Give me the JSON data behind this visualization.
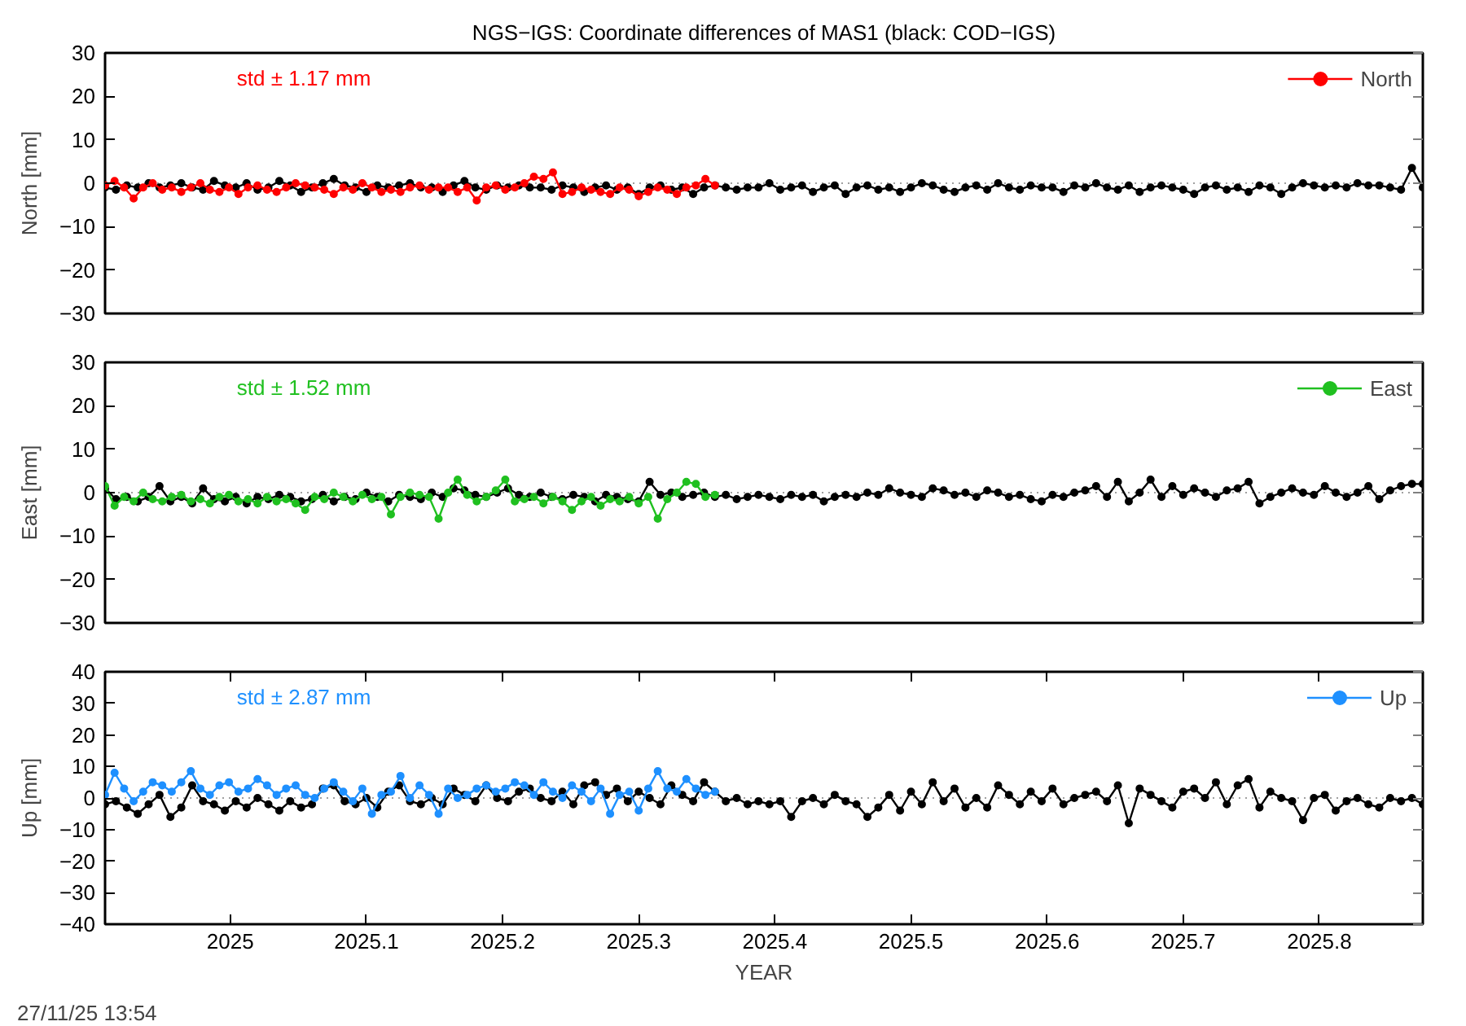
{
  "chart_data": [
    {
      "type": "line",
      "title": "NGS−IGS: Coordinate differences of MAS1 (black: COD−IGS)",
      "ylabel": "North [mm]",
      "xlim": [
        2024.908,
        2025.876
      ],
      "ylim": [
        -30,
        30
      ],
      "yticks": [
        -30,
        -20,
        -10,
        0,
        10,
        20,
        30
      ],
      "tick_labels": "y",
      "legend": "top right",
      "marker": "circle",
      "ref_lines": [
        {
          "axis": "y",
          "value": 0,
          "color": "#a0a0a0",
          "line_style": "dotted"
        }
      ],
      "annotations": [
        "std ± 1.17 mm"
      ],
      "series": [
        {
          "color": "#000000",
          "x": [
            2024.908,
            2024.916,
            2024.924,
            2024.932,
            2024.94,
            2024.948,
            2024.956,
            2024.964,
            2024.972,
            2024.98,
            2024.988,
            2024.996,
            2025.004,
            2025.012,
            2025.02,
            2025.028,
            2025.036,
            2025.044,
            2025.052,
            2025.06,
            2025.068,
            2025.076,
            2025.084,
            2025.092,
            2025.1,
            2025.108,
            2025.116,
            2025.124,
            2025.132,
            2025.14,
            2025.148,
            2025.156,
            2025.164,
            2025.172,
            2025.18,
            2025.188,
            2025.196,
            2025.204,
            2025.212,
            2025.22,
            2025.228,
            2025.236,
            2025.244,
            2025.252,
            2025.26,
            2025.268,
            2025.276,
            2025.284,
            2025.292,
            2025.3,
            2025.308,
            2025.316,
            2025.324,
            2025.332,
            2025.34,
            2025.348,
            2025.356,
            2025.364,
            2025.372,
            2025.38,
            2025.388,
            2025.396,
            2025.404,
            2025.412,
            2025.42,
            2025.428,
            2025.436,
            2025.444,
            2025.452,
            2025.46,
            2025.468,
            2025.476,
            2025.484,
            2025.492,
            2025.5,
            2025.508,
            2025.516,
            2025.524,
            2025.532,
            2025.54,
            2025.548,
            2025.556,
            2025.564,
            2025.572,
            2025.58,
            2025.588,
            2025.596,
            2025.604,
            2025.612,
            2025.62,
            2025.628,
            2025.636,
            2025.644,
            2025.652,
            2025.66,
            2025.668,
            2025.676,
            2025.684,
            2025.692,
            2025.7,
            2025.708,
            2025.716,
            2025.724,
            2025.732,
            2025.74,
            2025.748,
            2025.756,
            2025.764,
            2025.772,
            2025.78,
            2025.788,
            2025.796,
            2025.804,
            2025.812,
            2025.82,
            2025.828,
            2025.836,
            2025.844,
            2025.852,
            2025.86,
            2025.868,
            2025.876
          ],
          "values": [
            -1,
            -1.5,
            -0.5,
            -1,
            0,
            -1,
            -0.5,
            0,
            -1,
            -1.5,
            0.5,
            -0.5,
            -1,
            0,
            -1.5,
            -1,
            0.5,
            -0.5,
            -2,
            -1,
            0,
            1,
            -0.5,
            -1,
            -2,
            -0.5,
            -1,
            -0.5,
            0,
            -1,
            -1,
            -2,
            -0.5,
            0.5,
            -1,
            -1.5,
            -0.5,
            -1,
            -0.5,
            -1,
            -1,
            -1.5,
            -0.5,
            -1,
            -2,
            -1,
            -0.5,
            -1.5,
            -1,
            -2.5,
            -1,
            -0.5,
            -1.5,
            -1,
            -2.5,
            -1,
            -0.5,
            -1,
            -1.5,
            -1,
            -1,
            0,
            -1.5,
            -1,
            -0.5,
            -2,
            -1,
            -0.5,
            -2.5,
            -1,
            -0.5,
            -1.5,
            -1,
            -2,
            -1,
            0,
            -0.5,
            -1.5,
            -2,
            -1,
            -0.5,
            -1.5,
            0,
            -1,
            -1.5,
            -0.5,
            -1,
            -1,
            -2,
            -0.5,
            -1,
            0,
            -1,
            -1.5,
            -0.5,
            -2,
            -1,
            -0.5,
            -1,
            -1.5,
            -2.5,
            -1,
            -0.5,
            -1.5,
            -1,
            -2,
            -0.5,
            -1,
            -2.5,
            -1,
            0,
            -0.5,
            -1,
            -0.5,
            -1,
            0,
            -0.5,
            -0.5,
            -1,
            -1.5,
            3.5,
            -1
          ]
        },
        {
          "name": "North",
          "color": "#ff0000",
          "x": [
            2024.908,
            2024.915,
            2024.922,
            2024.929,
            2024.936,
            2024.943,
            2024.95,
            2024.957,
            2024.964,
            2024.971,
            2024.978,
            2024.985,
            2024.992,
            2024.999,
            2025.006,
            2025.013,
            2025.02,
            2025.027,
            2025.034,
            2025.041,
            2025.048,
            2025.055,
            2025.062,
            2025.069,
            2025.076,
            2025.083,
            2025.09,
            2025.097,
            2025.104,
            2025.111,
            2025.118,
            2025.125,
            2025.132,
            2025.139,
            2025.146,
            2025.153,
            2025.16,
            2025.167,
            2025.174,
            2025.181,
            2025.188,
            2025.195,
            2025.202,
            2025.209,
            2025.216,
            2025.223,
            2025.23,
            2025.237,
            2025.244,
            2025.251,
            2025.258,
            2025.265,
            2025.272,
            2025.279,
            2025.286,
            2025.293,
            2025.3,
            2025.307,
            2025.314,
            2025.321,
            2025.328,
            2025.335,
            2025.342,
            2025.349,
            2025.356
          ],
          "values": [
            -0.5,
            0.5,
            -1,
            -3.5,
            -1,
            0,
            -1.5,
            -1,
            -2,
            -1,
            0,
            -1.5,
            -2,
            -1,
            -2.5,
            -1,
            -0.5,
            -1.5,
            -2,
            -1,
            0,
            -0.5,
            -1,
            -1.5,
            -2.5,
            -1,
            -1.5,
            0,
            -1,
            -2,
            -1.5,
            -2,
            -1,
            -0.5,
            -1.5,
            -1,
            -1,
            -2,
            -1,
            -4,
            -1,
            -0.5,
            -1.5,
            -1,
            0,
            1.5,
            1,
            2.5,
            -2.5,
            -2,
            -1,
            -1.5,
            -2,
            -2.5,
            -1,
            -1.5,
            -3,
            -2,
            -1,
            -1.5,
            -2.5,
            -1,
            -0.5,
            1,
            -0.5
          ]
        }
      ]
    },
    {
      "type": "line",
      "ylabel": "East [mm]",
      "xlim": [
        2024.908,
        2025.876
      ],
      "ylim": [
        -30,
        30
      ],
      "yticks": [
        -30,
        -20,
        -10,
        0,
        10,
        20,
        30
      ],
      "tick_labels": "y",
      "legend": "top right",
      "marker": "circle",
      "ref_lines": [
        {
          "axis": "y",
          "value": 0,
          "color": "#a0a0a0",
          "line_style": "dotted"
        }
      ],
      "annotations": [
        "std ± 1.52 mm"
      ],
      "series": [
        {
          "color": "#000000",
          "x": [
            2024.908,
            2024.916,
            2024.924,
            2024.932,
            2024.94,
            2024.948,
            2024.956,
            2024.964,
            2024.972,
            2024.98,
            2024.988,
            2024.996,
            2025.004,
            2025.012,
            2025.02,
            2025.028,
            2025.036,
            2025.044,
            2025.052,
            2025.06,
            2025.068,
            2025.076,
            2025.084,
            2025.092,
            2025.1,
            2025.108,
            2025.116,
            2025.124,
            2025.132,
            2025.14,
            2025.148,
            2025.156,
            2025.164,
            2025.172,
            2025.18,
            2025.188,
            2025.196,
            2025.204,
            2025.212,
            2025.22,
            2025.228,
            2025.236,
            2025.244,
            2025.252,
            2025.26,
            2025.268,
            2025.276,
            2025.284,
            2025.292,
            2025.3,
            2025.308,
            2025.316,
            2025.324,
            2025.332,
            2025.34,
            2025.348,
            2025.356,
            2025.364,
            2025.372,
            2025.38,
            2025.388,
            2025.396,
            2025.404,
            2025.412,
            2025.42,
            2025.428,
            2025.436,
            2025.444,
            2025.452,
            2025.46,
            2025.468,
            2025.476,
            2025.484,
            2025.492,
            2025.5,
            2025.508,
            2025.516,
            2025.524,
            2025.532,
            2025.54,
            2025.548,
            2025.556,
            2025.564,
            2025.572,
            2025.58,
            2025.588,
            2025.596,
            2025.604,
            2025.612,
            2025.62,
            2025.628,
            2025.636,
            2025.644,
            2025.652,
            2025.66,
            2025.668,
            2025.676,
            2025.684,
            2025.692,
            2025.7,
            2025.708,
            2025.716,
            2025.724,
            2025.732,
            2025.74,
            2025.748,
            2025.756,
            2025.764,
            2025.772,
            2025.78,
            2025.788,
            2025.796,
            2025.804,
            2025.812,
            2025.82,
            2025.828,
            2025.836,
            2025.844,
            2025.852,
            2025.86,
            2025.868,
            2025.876
          ],
          "values": [
            1,
            -1.5,
            -1,
            -2,
            -1,
            1.5,
            -2,
            -1,
            -2.5,
            1,
            -1.5,
            -2,
            -1,
            -2.5,
            -1,
            -1.5,
            -0.5,
            -1,
            -2,
            -1.5,
            -0.5,
            -2,
            -1,
            -1.5,
            0,
            -1,
            -2,
            -0.5,
            -1,
            -1.5,
            0,
            -1,
            1,
            0.5,
            -0.5,
            -1,
            0,
            1,
            -0.5,
            -1,
            0,
            -1,
            -1.5,
            -0.5,
            -1,
            -2,
            -0.5,
            -1,
            -1.5,
            -2,
            2.5,
            -0.5,
            0,
            -1,
            -0.5,
            0,
            -1,
            -0.5,
            -1.5,
            -1,
            -0.5,
            -1,
            -1.5,
            -0.5,
            -1,
            -0.5,
            -2,
            -1,
            -0.5,
            -1,
            0,
            -0.5,
            1,
            0,
            -0.5,
            -1,
            1,
            0.5,
            -0.5,
            0,
            -1,
            0.5,
            0,
            -1,
            -0.5,
            -1.5,
            -2,
            -0.5,
            -1,
            0,
            0.5,
            1.5,
            -1,
            2.5,
            -2,
            0,
            3,
            -1,
            1.5,
            -0.5,
            1,
            0,
            -1,
            0.5,
            1,
            2.5,
            -2.5,
            -1,
            0,
            1,
            0,
            -0.5,
            1.5,
            0,
            -1,
            0,
            1.5,
            -1.5,
            0.5,
            1.5,
            2,
            2
          ]
        },
        {
          "name": "East",
          "color": "#20c020",
          "x": [
            2024.908,
            2024.915,
            2024.922,
            2024.929,
            2024.936,
            2024.943,
            2024.95,
            2024.957,
            2024.964,
            2024.971,
            2024.978,
            2024.985,
            2024.992,
            2024.999,
            2025.006,
            2025.013,
            2025.02,
            2025.027,
            2025.034,
            2025.041,
            2025.048,
            2025.055,
            2025.062,
            2025.069,
            2025.076,
            2025.083,
            2025.09,
            2025.097,
            2025.104,
            2025.111,
            2025.118,
            2025.125,
            2025.132,
            2025.139,
            2025.146,
            2025.153,
            2025.16,
            2025.167,
            2025.174,
            2025.181,
            2025.188,
            2025.195,
            2025.202,
            2025.209,
            2025.216,
            2025.223,
            2025.23,
            2025.237,
            2025.244,
            2025.251,
            2025.258,
            2025.265,
            2025.272,
            2025.279,
            2025.286,
            2025.293,
            2025.3,
            2025.307,
            2025.314,
            2025.321,
            2025.328,
            2025.335,
            2025.342,
            2025.349,
            2025.356
          ],
          "values": [
            1.5,
            -3,
            -1,
            -2,
            0,
            -1.5,
            -2,
            -1,
            -0.5,
            -2,
            -1.5,
            -2.5,
            -1,
            -0.5,
            -2,
            -1.5,
            -2.5,
            -1,
            -2,
            -1.5,
            -2.5,
            -4,
            -1,
            -1.5,
            0,
            -1,
            -2,
            -0.5,
            -1.5,
            -1,
            -5,
            -1,
            0,
            -0.5,
            -1,
            -6,
            0,
            3,
            -0.5,
            -2,
            -1,
            0.5,
            3,
            -2,
            -1.5,
            -1,
            -2.5,
            -1,
            -2,
            -4,
            -2,
            -1,
            -3,
            -1.5,
            -2,
            -1,
            -2.5,
            -1,
            -6,
            -1.5,
            0,
            2.5,
            2,
            -1,
            -0.5
          ]
        }
      ]
    },
    {
      "type": "line",
      "ylabel": "Up [mm]",
      "xlabel": "YEAR",
      "xlim": [
        2024.908,
        2025.876
      ],
      "xticks": [
        2025,
        2025.1,
        2025.2,
        2025.3,
        2025.4,
        2025.5,
        2025.6,
        2025.7,
        2025.8
      ],
      "ylim": [
        -40,
        40
      ],
      "yticks": [
        -40,
        -30,
        -20,
        -10,
        0,
        10,
        20,
        30,
        40
      ],
      "legend": "top right",
      "marker": "circle",
      "ref_lines": [
        {
          "axis": "y",
          "value": 0,
          "color": "#a0a0a0",
          "line_style": "dotted"
        }
      ],
      "annotations": [
        "std ± 2.87 mm",
        "27/11/25 13:54"
      ],
      "series": [
        {
          "color": "#000000",
          "x": [
            2024.908,
            2024.916,
            2024.924,
            2024.932,
            2024.94,
            2024.948,
            2024.956,
            2024.964,
            2024.972,
            2024.98,
            2024.988,
            2024.996,
            2025.004,
            2025.012,
            2025.02,
            2025.028,
            2025.036,
            2025.044,
            2025.052,
            2025.06,
            2025.068,
            2025.076,
            2025.084,
            2025.092,
            2025.1,
            2025.108,
            2025.116,
            2025.124,
            2025.132,
            2025.14,
            2025.148,
            2025.156,
            2025.164,
            2025.172,
            2025.18,
            2025.188,
            2025.196,
            2025.204,
            2025.212,
            2025.22,
            2025.228,
            2025.236,
            2025.244,
            2025.252,
            2025.26,
            2025.268,
            2025.276,
            2025.284,
            2025.292,
            2025.3,
            2025.308,
            2025.316,
            2025.324,
            2025.332,
            2025.34,
            2025.348,
            2025.356,
            2025.364,
            2025.372,
            2025.38,
            2025.388,
            2025.396,
            2025.404,
            2025.412,
            2025.42,
            2025.428,
            2025.436,
            2025.444,
            2025.452,
            2025.46,
            2025.468,
            2025.476,
            2025.484,
            2025.492,
            2025.5,
            2025.508,
            2025.516,
            2025.524,
            2025.532,
            2025.54,
            2025.548,
            2025.556,
            2025.564,
            2025.572,
            2025.58,
            2025.588,
            2025.596,
            2025.604,
            2025.612,
            2025.62,
            2025.628,
            2025.636,
            2025.644,
            2025.652,
            2025.66,
            2025.668,
            2025.676,
            2025.684,
            2025.692,
            2025.7,
            2025.708,
            2025.716,
            2025.724,
            2025.732,
            2025.74,
            2025.748,
            2025.756,
            2025.764,
            2025.772,
            2025.78,
            2025.788,
            2025.796,
            2025.804,
            2025.812,
            2025.82,
            2025.828,
            2025.836,
            2025.844,
            2025.852,
            2025.86,
            2025.868,
            2025.876
          ],
          "values": [
            -2,
            -1,
            -3,
            -5,
            -2,
            1,
            -6,
            -3,
            4,
            -1,
            -2,
            -4,
            -1,
            -3,
            0,
            -2,
            -4,
            -1,
            -3,
            -2,
            3,
            4,
            -1,
            -2,
            0,
            -3,
            2,
            4,
            -1,
            -2,
            0,
            -2,
            3,
            1,
            -1,
            4,
            0,
            -1,
            2,
            3,
            0,
            -1,
            2,
            -2,
            4,
            5,
            1,
            3,
            -1,
            2,
            0,
            -2,
            4,
            1,
            -1,
            5,
            2,
            -1,
            0,
            -2,
            -1,
            -2,
            -1,
            -6,
            -1,
            0,
            -2,
            1,
            -1,
            -2,
            -6,
            -3,
            1,
            -4,
            2,
            -2,
            5,
            -1,
            3,
            -3,
            0,
            -3,
            4,
            1,
            -2,
            2,
            -1,
            3,
            -2,
            0,
            1,
            2,
            -1,
            4,
            -8,
            3,
            1,
            -1,
            -3,
            2,
            3,
            0,
            5,
            -2,
            4,
            6,
            -3,
            2,
            0,
            -1,
            -7,
            0,
            1,
            -4,
            -1,
            0,
            -2,
            -3,
            0,
            -1,
            0,
            -2
          ]
        },
        {
          "name": "Up",
          "color": "#1e90ff",
          "x": [
            2024.908,
            2024.915,
            2024.922,
            2024.929,
            2024.936,
            2024.943,
            2024.95,
            2024.957,
            2024.964,
            2024.971,
            2024.978,
            2024.985,
            2024.992,
            2024.999,
            2025.006,
            2025.013,
            2025.02,
            2025.027,
            2025.034,
            2025.041,
            2025.048,
            2025.055,
            2025.062,
            2025.069,
            2025.076,
            2025.083,
            2025.09,
            2025.097,
            2025.104,
            2025.111,
            2025.118,
            2025.125,
            2025.132,
            2025.139,
            2025.146,
            2025.153,
            2025.16,
            2025.167,
            2025.174,
            2025.181,
            2025.188,
            2025.195,
            2025.202,
            2025.209,
            2025.216,
            2025.223,
            2025.23,
            2025.237,
            2025.244,
            2025.251,
            2025.258,
            2025.265,
            2025.272,
            2025.279,
            2025.286,
            2025.293,
            2025.3,
            2025.307,
            2025.314,
            2025.321,
            2025.328,
            2025.335,
            2025.342,
            2025.349,
            2025.356
          ],
          "values": [
            1,
            8,
            3,
            -1,
            2,
            5,
            4,
            2,
            5,
            8.5,
            3,
            1,
            4,
            5,
            2,
            3,
            6,
            4,
            1,
            3,
            4,
            1,
            0,
            3,
            5,
            2,
            -1,
            3,
            -5,
            1,
            2,
            7,
            0,
            4,
            1,
            -5,
            3,
            0,
            1,
            3,
            4,
            2,
            3,
            5,
            4,
            1,
            5,
            2,
            0,
            4,
            2,
            -1,
            3,
            -5,
            1,
            2,
            -4,
            3,
            8.5,
            3,
            2,
            6,
            3,
            1,
            2
          ]
        }
      ]
    }
  ]
}
